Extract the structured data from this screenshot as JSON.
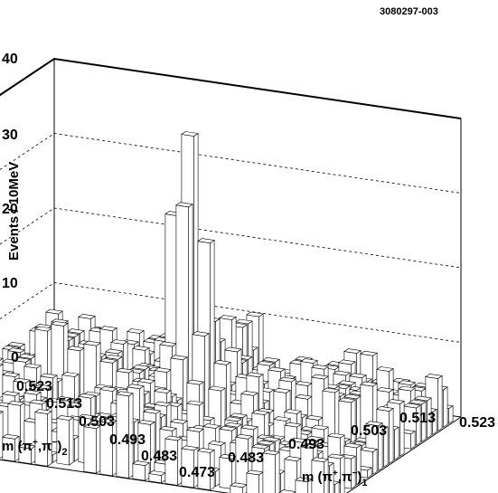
{
  "chart_data": {
    "type": "lego3d",
    "tag": "3080297-003",
    "zlabel": "Events / 10MeV",
    "xlabel": {
      "main": "m (π",
      "sup1": "+",
      "mid": ",π",
      "sup2": "−",
      "close": ")",
      "sub": "1"
    },
    "ylabel": {
      "main": "m (π",
      "sup1": "+",
      "mid": ",π",
      "sup2": "−",
      "close": ")",
      "sub": "2"
    },
    "xlim": [
      0.473,
      0.523
    ],
    "ylim": [
      0.473,
      0.523
    ],
    "zlim": [
      0,
      40
    ],
    "xticks": [
      "0.483",
      "0.493",
      "0.503",
      "0.513",
      "0.523"
    ],
    "yticks": [
      "0.523",
      "0.513",
      "0.503",
      "0.493",
      "0.483",
      "0.473"
    ],
    "zticks": [
      "0",
      "10",
      "20",
      "30",
      "40"
    ],
    "peak": {
      "x": 0.498,
      "y": 0.498,
      "height": 31
    },
    "background_level": "0-8",
    "bins_per_axis": 25,
    "gridlines": "dashed on back walls"
  }
}
